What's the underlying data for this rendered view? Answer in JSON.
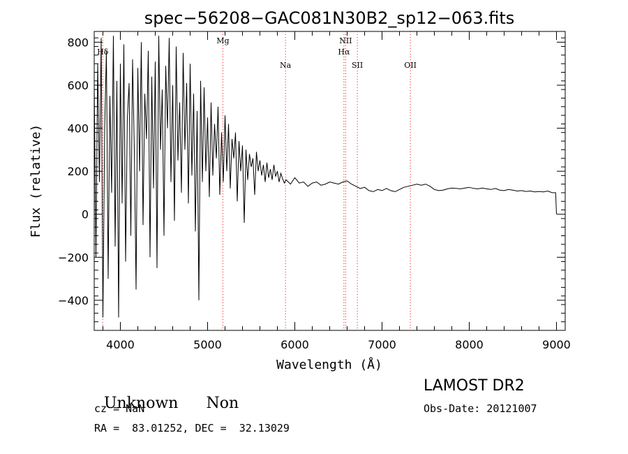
{
  "chart_data": {
    "type": "line",
    "title": "spec−56208−GAC081N30B2_sp12−063.fits",
    "xlabel": "Wavelength (Å)",
    "ylabel": "Flux (relative)",
    "xlim": [
      3700,
      9100
    ],
    "ylim": [
      -540,
      850
    ],
    "x_ticks": [
      4000,
      5000,
      6000,
      7000,
      8000,
      9000
    ],
    "y_ticks": [
      -400,
      -200,
      0,
      200,
      400,
      600,
      800
    ],
    "y_tick_labels": [
      "−400",
      "−200",
      "0",
      "200",
      "400",
      "600",
      "800"
    ],
    "grid": false,
    "line_color": "#000000",
    "marker_color": "#ff0000",
    "lines": [
      {
        "label": "Hδ",
        "x": 3798,
        "row": 1
      },
      {
        "label": "Mg",
        "x": 5175,
        "row": 0
      },
      {
        "label": "Na",
        "x": 5893,
        "row": 2
      },
      {
        "label": "NII",
        "x": 6583,
        "row": 0
      },
      {
        "label": "Hα",
        "x": 6563,
        "row": 1
      },
      {
        "label": "SII",
        "x": 6717,
        "row": 2
      },
      {
        "label": "OII",
        "x": 7325,
        "row": 2
      }
    ],
    "series": [
      {
        "x": [
          3700,
          3720,
          3740,
          3760,
          3780,
          3800,
          3820,
          3840,
          3860,
          3880,
          3900,
          3920,
          3940,
          3960,
          3980,
          4000,
          4020,
          4040,
          4060,
          4080,
          4100,
          4120,
          4140,
          4160,
          4180,
          4200,
          4220,
          4240,
          4260,
          4280,
          4300,
          4320,
          4340,
          4360,
          4380,
          4400,
          4420,
          4440,
          4460,
          4480,
          4500,
          4520,
          4540,
          4560,
          4580,
          4600,
          4620,
          4640,
          4660,
          4680,
          4700,
          4720,
          4740,
          4760,
          4780,
          4800,
          4820,
          4840,
          4860,
          4880,
          4900,
          4920,
          4940,
          4960,
          4980,
          5000,
          5020,
          5040,
          5060,
          5080,
          5100,
          5120,
          5140,
          5160,
          5180,
          5200,
          5220,
          5240,
          5260,
          5280,
          5300,
          5320,
          5340,
          5360,
          5380,
          5400,
          5420,
          5440,
          5460,
          5480,
          5500,
          5520,
          5540,
          5560,
          5580,
          5600,
          5620,
          5640,
          5660,
          5680,
          5700,
          5720,
          5740,
          5760,
          5780,
          5800,
          5820,
          5840,
          5860,
          5880,
          5900,
          5950,
          6000,
          6050,
          6100,
          6150,
          6200,
          6250,
          6300,
          6350,
          6400,
          6450,
          6500,
          6550,
          6600,
          6650,
          6700,
          6750,
          6800,
          6850,
          6900,
          6950,
          7000,
          7050,
          7100,
          7150,
          7200,
          7250,
          7300,
          7350,
          7400,
          7450,
          7500,
          7550,
          7600,
          7650,
          7700,
          7750,
          7800,
          7850,
          7900,
          7950,
          8000,
          8050,
          8100,
          8150,
          8200,
          8250,
          8300,
          8350,
          8400,
          8450,
          8500,
          8550,
          8600,
          8650,
          8700,
          8750,
          8800,
          8850,
          8900,
          8950,
          8990,
          9000
        ],
        "values": [
          600,
          -200,
          700,
          150,
          820,
          -480,
          400,
          760,
          -300,
          550,
          100,
          830,
          -150,
          620,
          -480,
          700,
          50,
          790,
          -220,
          450,
          610,
          -100,
          720,
          300,
          -350,
          680,
          200,
          800,
          -50,
          560,
          350,
          760,
          -200,
          640,
          120,
          710,
          -250,
          830,
          300,
          580,
          -100,
          690,
          400,
          820,
          150,
          600,
          -30,
          780,
          250,
          520,
          100,
          750,
          300,
          610,
          50,
          700,
          180,
          560,
          -80,
          480,
          -400,
          620,
          150,
          590,
          200,
          450,
          80,
          520,
          180,
          420,
          260,
          500,
          90,
          380,
          150,
          460,
          200,
          420,
          120,
          350,
          260,
          380,
          60,
          340,
          200,
          320,
          -40,
          300,
          160,
          280,
          220,
          260,
          90,
          290,
          200,
          250,
          180,
          230,
          150,
          240,
          170,
          210,
          160,
          230,
          175,
          200,
          150,
          190,
          165,
          145,
          160,
          140,
          170,
          145,
          150,
          130,
          145,
          150,
          135,
          140,
          150,
          145,
          140,
          150,
          155,
          140,
          130,
          120,
          125,
          110,
          105,
          115,
          110,
          120,
          110,
          105,
          115,
          125,
          130,
          135,
          140,
          135,
          140,
          130,
          115,
          110,
          112,
          118,
          122,
          120,
          118,
          122,
          125,
          120,
          118,
          122,
          118,
          115,
          120,
          112,
          110,
          115,
          112,
          108,
          110,
          106,
          108,
          104,
          106,
          104,
          108,
          100,
          100,
          0
        ]
      }
    ]
  },
  "info": {
    "class": "Unknown",
    "subclass": "Non",
    "cz": "cz = NaN",
    "radec": "RA =  83.01252, DEC =  32.13029",
    "survey": "LAMOST DR2",
    "obs_date": "Obs-Date: 20121007"
  }
}
